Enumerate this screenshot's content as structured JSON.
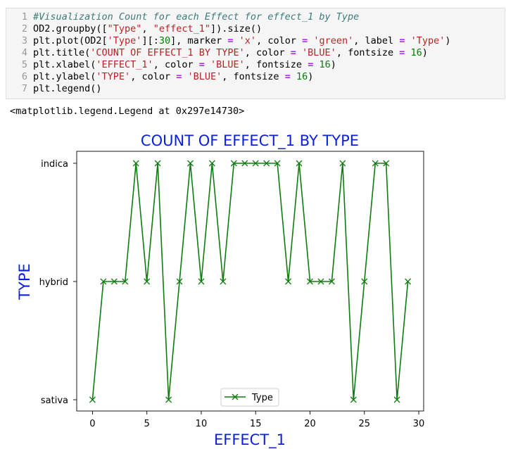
{
  "cell": {
    "line_numbers": [
      "1",
      "2",
      "3",
      "4",
      "5",
      "6",
      "7"
    ],
    "lines": [
      [
        {
          "t": "#Visualization Count for each Effect for effect_1 by Type",
          "c": "comment"
        }
      ],
      [
        {
          "t": "OD2.groupby([",
          "c": ""
        },
        {
          "t": "\"Type\"",
          "c": "string"
        },
        {
          "t": ", ",
          "c": ""
        },
        {
          "t": "\"effect_1\"",
          "c": "string"
        },
        {
          "t": "]).size()",
          "c": ""
        }
      ],
      [
        {
          "t": "plt.plot(OD2[",
          "c": ""
        },
        {
          "t": "'Type'",
          "c": "string"
        },
        {
          "t": "][:",
          "c": ""
        },
        {
          "t": "30",
          "c": "number"
        },
        {
          "t": "], marker ",
          "c": ""
        },
        {
          "t": "=",
          "c": "op"
        },
        {
          "t": " ",
          "c": ""
        },
        {
          "t": "'x'",
          "c": "string"
        },
        {
          "t": ", color ",
          "c": ""
        },
        {
          "t": "=",
          "c": "op"
        },
        {
          "t": " ",
          "c": ""
        },
        {
          "t": "'green'",
          "c": "string"
        },
        {
          "t": ", label ",
          "c": ""
        },
        {
          "t": "=",
          "c": "op"
        },
        {
          "t": " ",
          "c": ""
        },
        {
          "t": "'Type'",
          "c": "string"
        },
        {
          "t": ")",
          "c": ""
        }
      ],
      [
        {
          "t": "plt.title(",
          "c": ""
        },
        {
          "t": "'COUNT OF EFFECT_1 BY TYPE'",
          "c": "string"
        },
        {
          "t": ", color ",
          "c": ""
        },
        {
          "t": "=",
          "c": "op"
        },
        {
          "t": " ",
          "c": ""
        },
        {
          "t": "'BLUE'",
          "c": "string"
        },
        {
          "t": ", fontsize ",
          "c": ""
        },
        {
          "t": "=",
          "c": "op"
        },
        {
          "t": " ",
          "c": ""
        },
        {
          "t": "16",
          "c": "number"
        },
        {
          "t": ")",
          "c": ""
        }
      ],
      [
        {
          "t": "plt.xlabel(",
          "c": ""
        },
        {
          "t": "'EFFECT_1'",
          "c": "string"
        },
        {
          "t": ", color ",
          "c": ""
        },
        {
          "t": "=",
          "c": "op"
        },
        {
          "t": " ",
          "c": ""
        },
        {
          "t": "'BLUE'",
          "c": "string"
        },
        {
          "t": ", fontsize ",
          "c": ""
        },
        {
          "t": "=",
          "c": "op"
        },
        {
          "t": " ",
          "c": ""
        },
        {
          "t": "16",
          "c": "number"
        },
        {
          "t": ")",
          "c": ""
        }
      ],
      [
        {
          "t": "plt.ylabel(",
          "c": ""
        },
        {
          "t": "'TYPE'",
          "c": "string"
        },
        {
          "t": ", color ",
          "c": ""
        },
        {
          "t": "=",
          "c": "op"
        },
        {
          "t": " ",
          "c": ""
        },
        {
          "t": "'BLUE'",
          "c": "string"
        },
        {
          "t": ", fontsize ",
          "c": ""
        },
        {
          "t": "=",
          "c": "op"
        },
        {
          "t": " ",
          "c": ""
        },
        {
          "t": "16",
          "c": "number"
        },
        {
          "t": ")",
          "c": ""
        }
      ],
      [
        {
          "t": "plt.legend()",
          "c": ""
        }
      ]
    ]
  },
  "output_text": "<matplotlib.legend.Legend at 0x297e14730>",
  "chart_data": {
    "type": "line",
    "title": "COUNT OF EFFECT_1 BY TYPE",
    "xlabel": "EFFECT_1",
    "ylabel": "TYPE",
    "title_color": "#0a1fe0",
    "line_color": "#107c10",
    "marker": "x",
    "xlim": [
      -1.45,
      30.45
    ],
    "xticks": [
      0,
      5,
      10,
      15,
      20,
      25,
      30
    ],
    "categories": [
      "sativa",
      "hybrid",
      "indica"
    ],
    "legend_placement": "lower center",
    "grid": false,
    "series": [
      {
        "name": "Type",
        "x": [
          0,
          1,
          2,
          3,
          4,
          5,
          6,
          7,
          8,
          9,
          10,
          11,
          12,
          13,
          14,
          15,
          16,
          17,
          18,
          19,
          20,
          21,
          22,
          23,
          24,
          25,
          26,
          27,
          28,
          29
        ],
        "y": [
          "sativa",
          "hybrid",
          "hybrid",
          "hybrid",
          "indica",
          "hybrid",
          "indica",
          "sativa",
          "hybrid",
          "indica",
          "hybrid",
          "indica",
          "hybrid",
          "indica",
          "indica",
          "indica",
          "indica",
          "indica",
          "hybrid",
          "indica",
          "hybrid",
          "hybrid",
          "hybrid",
          "indica",
          "sativa",
          "hybrid",
          "indica",
          "indica",
          "sativa",
          "hybrid"
        ]
      }
    ]
  }
}
